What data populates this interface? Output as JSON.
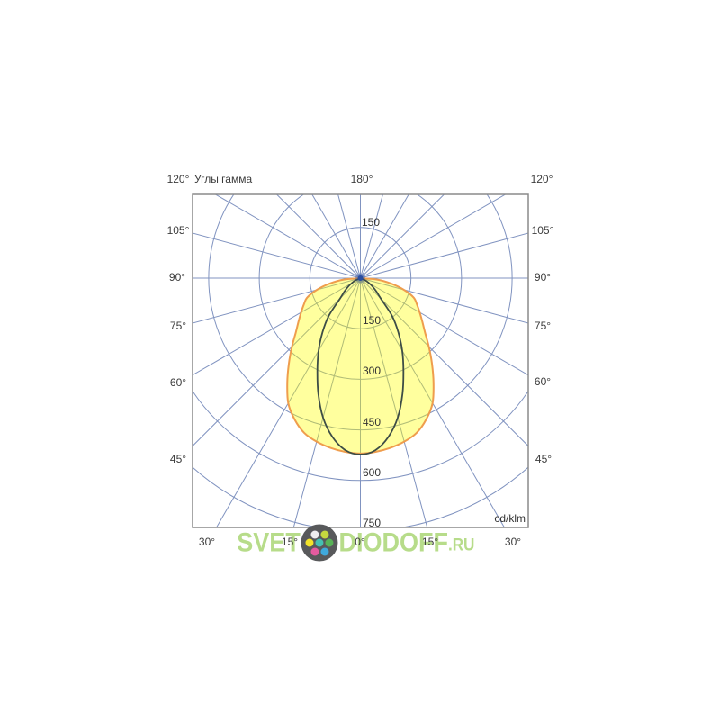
{
  "page": {
    "background": "#ffffff"
  },
  "chart_data": {
    "type": "polar_photometric",
    "title": "Углы гамма",
    "unit_label": "cd/klm",
    "gamma_axis": {
      "step_deg": 15,
      "orientation": "0 deg at bottom, 180 deg at top"
    },
    "radial_axis": {
      "ticks": [
        150,
        300,
        450,
        600,
        750
      ],
      "max": 750,
      "unit": "cd/klm"
    },
    "angle_labels": {
      "top": [
        "120°",
        "180°",
        "120°"
      ],
      "left": [
        "105°",
        "90°",
        "75°",
        "60°",
        "45°"
      ],
      "right": [
        "105°",
        "90°",
        "75°",
        "60°",
        "45°"
      ],
      "bottom": [
        "30°",
        "15°",
        "0°",
        "15°",
        "30°"
      ]
    },
    "ring_label_upper": "150",
    "ring_labels_lower": [
      "150",
      "300",
      "450",
      "600",
      "750"
    ],
    "grid_color": "#8093c0",
    "border_color": "#8a8a8a",
    "center_dot_color": "#2a4da0",
    "series": [
      {
        "name": "beam-curve-wide-filled",
        "fill": "rgba(255,255,0,0.38)",
        "stroke": "#ef9d4d",
        "stroke_width": 2,
        "gamma_deg": [
          0,
          5,
          10,
          15,
          20,
          25,
          30,
          35,
          40,
          45,
          50,
          55,
          60,
          65,
          70,
          75,
          80,
          85,
          90
        ],
        "intensity_cd_klm": [
          520,
          517,
          511,
          502,
          488,
          462,
          428,
          378,
          330,
          287,
          250,
          224,
          203,
          185,
          168,
          133,
          92,
          50,
          0
        ]
      },
      {
        "name": "beam-curve-narrow",
        "fill": "none",
        "stroke": "#3d4d46",
        "stroke_width": 1.8,
        "gamma_deg": [
          0,
          5,
          10,
          15,
          20,
          25,
          30,
          35,
          40,
          45,
          50,
          55,
          60,
          65,
          70
        ],
        "intensity_cd_klm": [
          523,
          512,
          478,
          428,
          365,
          302,
          248,
          196,
          146,
          85,
          62,
          45,
          30,
          18,
          0
        ]
      }
    ]
  },
  "watermark": {
    "text_before": "SVET",
    "text_after": "DIODOFF",
    "suffix": ".RU",
    "color": "#a6d46d",
    "logo_bg": "#58595b",
    "logo_dot_colors": [
      "#efefef",
      "#c6d93f",
      "#f3e32a",
      "#58b257",
      "#e45b9f",
      "#3fa9dc",
      "#45c0b2"
    ]
  }
}
